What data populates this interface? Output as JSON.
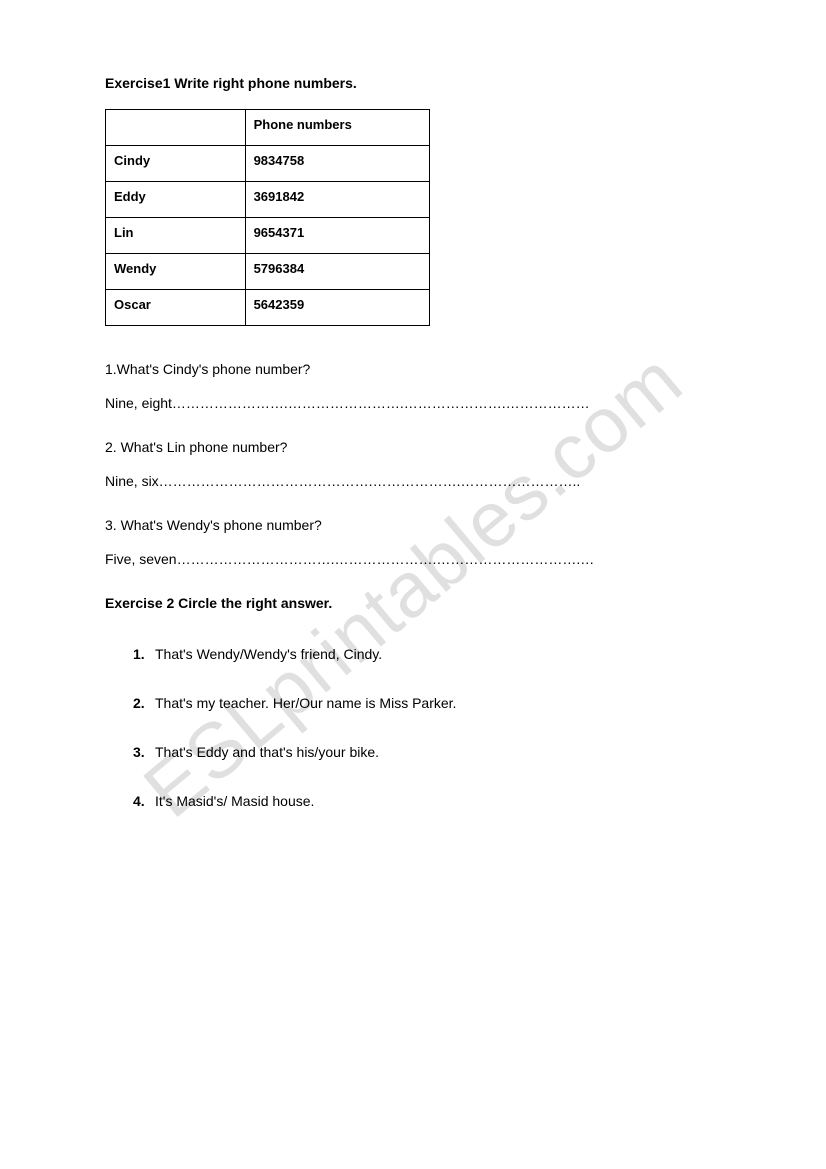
{
  "exercise1": {
    "title": "Exercise1 Write right phone numbers.",
    "table": {
      "header": {
        "name": "",
        "phone": "Phone numbers"
      },
      "rows": [
        {
          "name": "Cindy",
          "phone": "9834758"
        },
        {
          "name": "Eddy",
          "phone": "3691842"
        },
        {
          "name": "Lin",
          "phone": "9654371"
        },
        {
          "name": "Wendy",
          "phone": "5796384"
        },
        {
          "name": "Oscar",
          "phone": "5642359"
        }
      ]
    },
    "questions": [
      {
        "q": "1.What's Cindy's phone number?",
        "a": "Nine, eight…………………….…………………….………………….………………"
      },
      {
        "q": "2. What's Lin phone number?",
        "a": "Nine, six……………………………………….……………….…………………….."
      },
      {
        "q": "3. What's Wendy's phone number?",
        "a": "Five, seven…………………………….………………….………………………….…"
      }
    ]
  },
  "exercise2": {
    "title": "Exercise 2 Circle the right answer.",
    "items": [
      {
        "num": "1.",
        "text": "That's Wendy/Wendy's friend, Cindy."
      },
      {
        "num": "2.",
        "text": "That's my teacher. Her/Our name is Miss Parker."
      },
      {
        "num": "3.",
        "text": "That's Eddy and that's his/your bike."
      },
      {
        "num": "4.",
        "text": "It's Masid's/ Masid house."
      }
    ]
  },
  "watermark": "ESLprintables.com",
  "colors": {
    "text": "#000000",
    "background": "#ffffff",
    "watermark": "rgba(0,0,0,0.12)",
    "border": "#000000"
  }
}
